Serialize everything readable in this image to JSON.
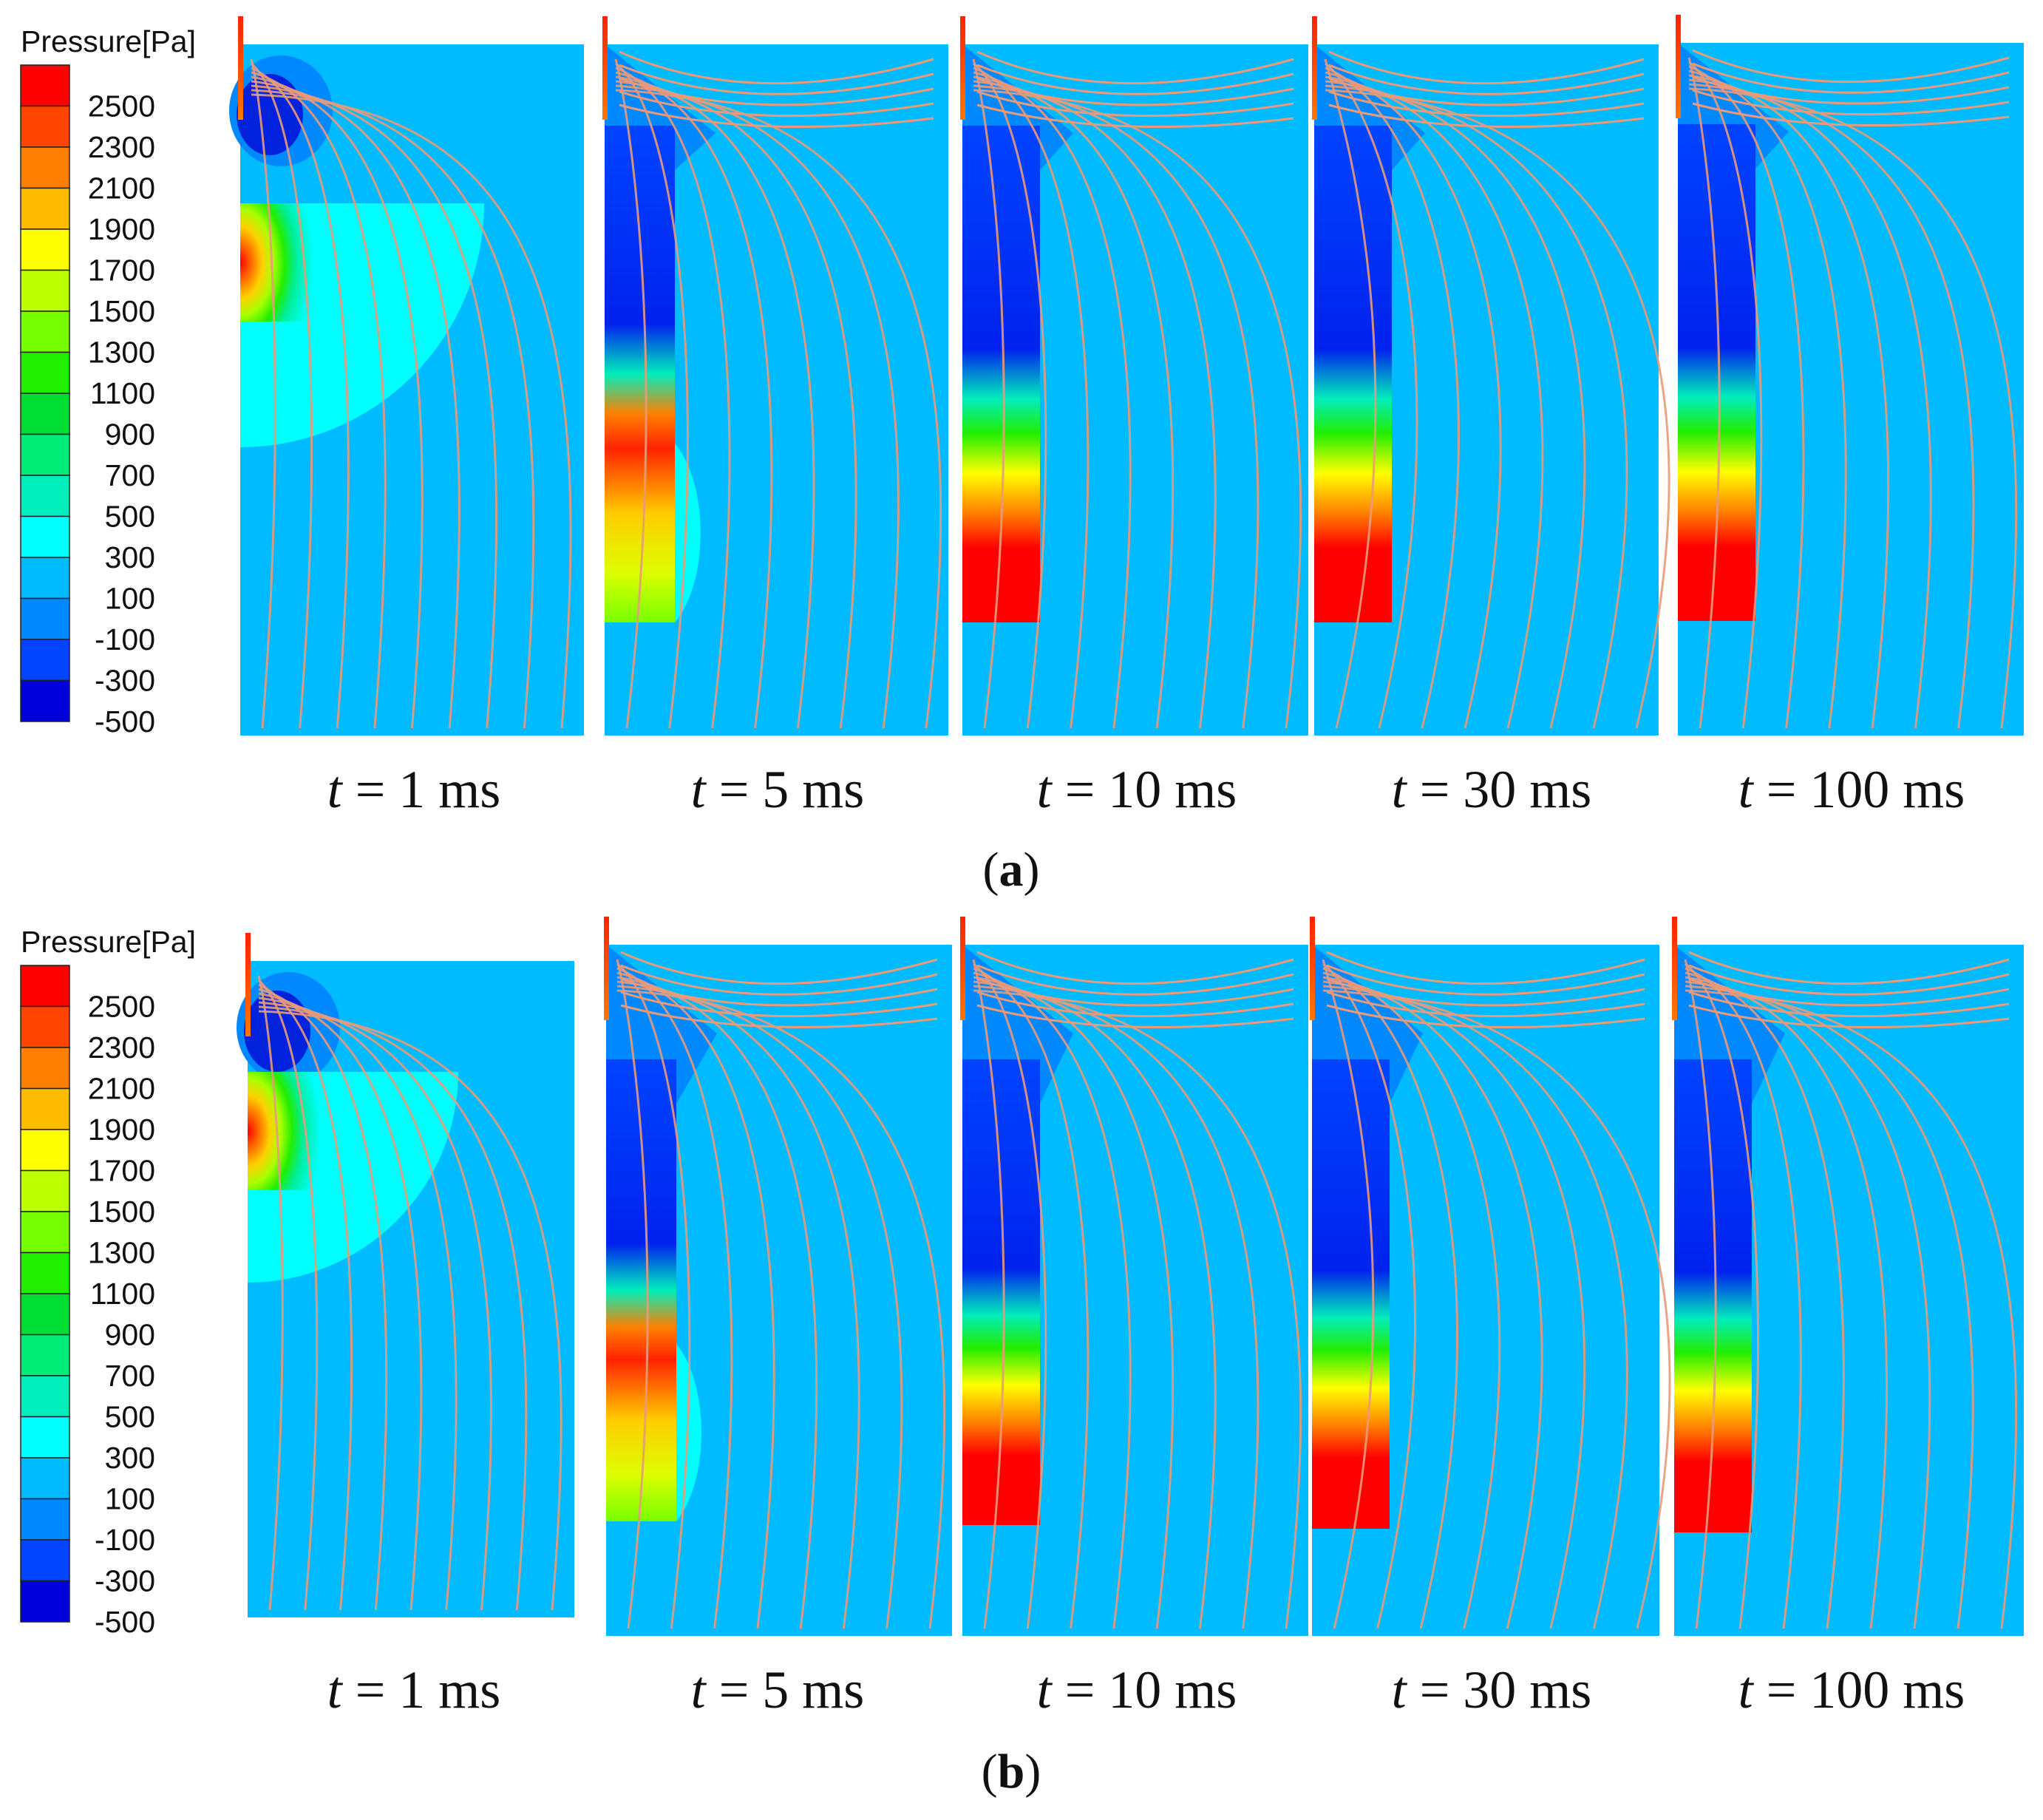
{
  "colorbar": {
    "title": "Pressure[Pa]",
    "levels": [
      "2500",
      "2300",
      "2100",
      "1900",
      "1700",
      "1500",
      "1300",
      "1100",
      "900",
      "700",
      "500",
      "300",
      "100",
      "-100",
      "-300",
      "-500"
    ],
    "colors": [
      "#ff0000",
      "#ff4400",
      "#ff8000",
      "#ffbb00",
      "#ffff00",
      "#bbff00",
      "#77ff00",
      "#22ee00",
      "#00dd33",
      "#00ee77",
      "#00eebb",
      "#00ffff",
      "#00bbff",
      "#0088ff",
      "#0044ff",
      "#0000dd"
    ]
  },
  "background_color": "#00bbff",
  "streamline_color": "#e89a7a",
  "panels": [
    {
      "label_open": "(",
      "label_bold": "a",
      "label_close": ")",
      "frames": [
        {
          "var": "t",
          "rest": " = 1 ms"
        },
        {
          "var": "t",
          "rest": " = 5 ms"
        },
        {
          "var": "t",
          "rest": " = 10 ms"
        },
        {
          "var": "t",
          "rest": " = 30 ms"
        },
        {
          "var": "t",
          "rest": " = 100 ms"
        }
      ]
    },
    {
      "label_open": "(",
      "label_bold": "b",
      "label_close": ")",
      "frames": [
        {
          "var": "t",
          "rest": " = 1 ms"
        },
        {
          "var": "t",
          "rest": " = 5 ms"
        },
        {
          "var": "t",
          "rest": " = 10 ms"
        },
        {
          "var": "t",
          "rest": " = 30 ms"
        },
        {
          "var": "t",
          "rest": " = 100 ms"
        }
      ]
    }
  ]
}
